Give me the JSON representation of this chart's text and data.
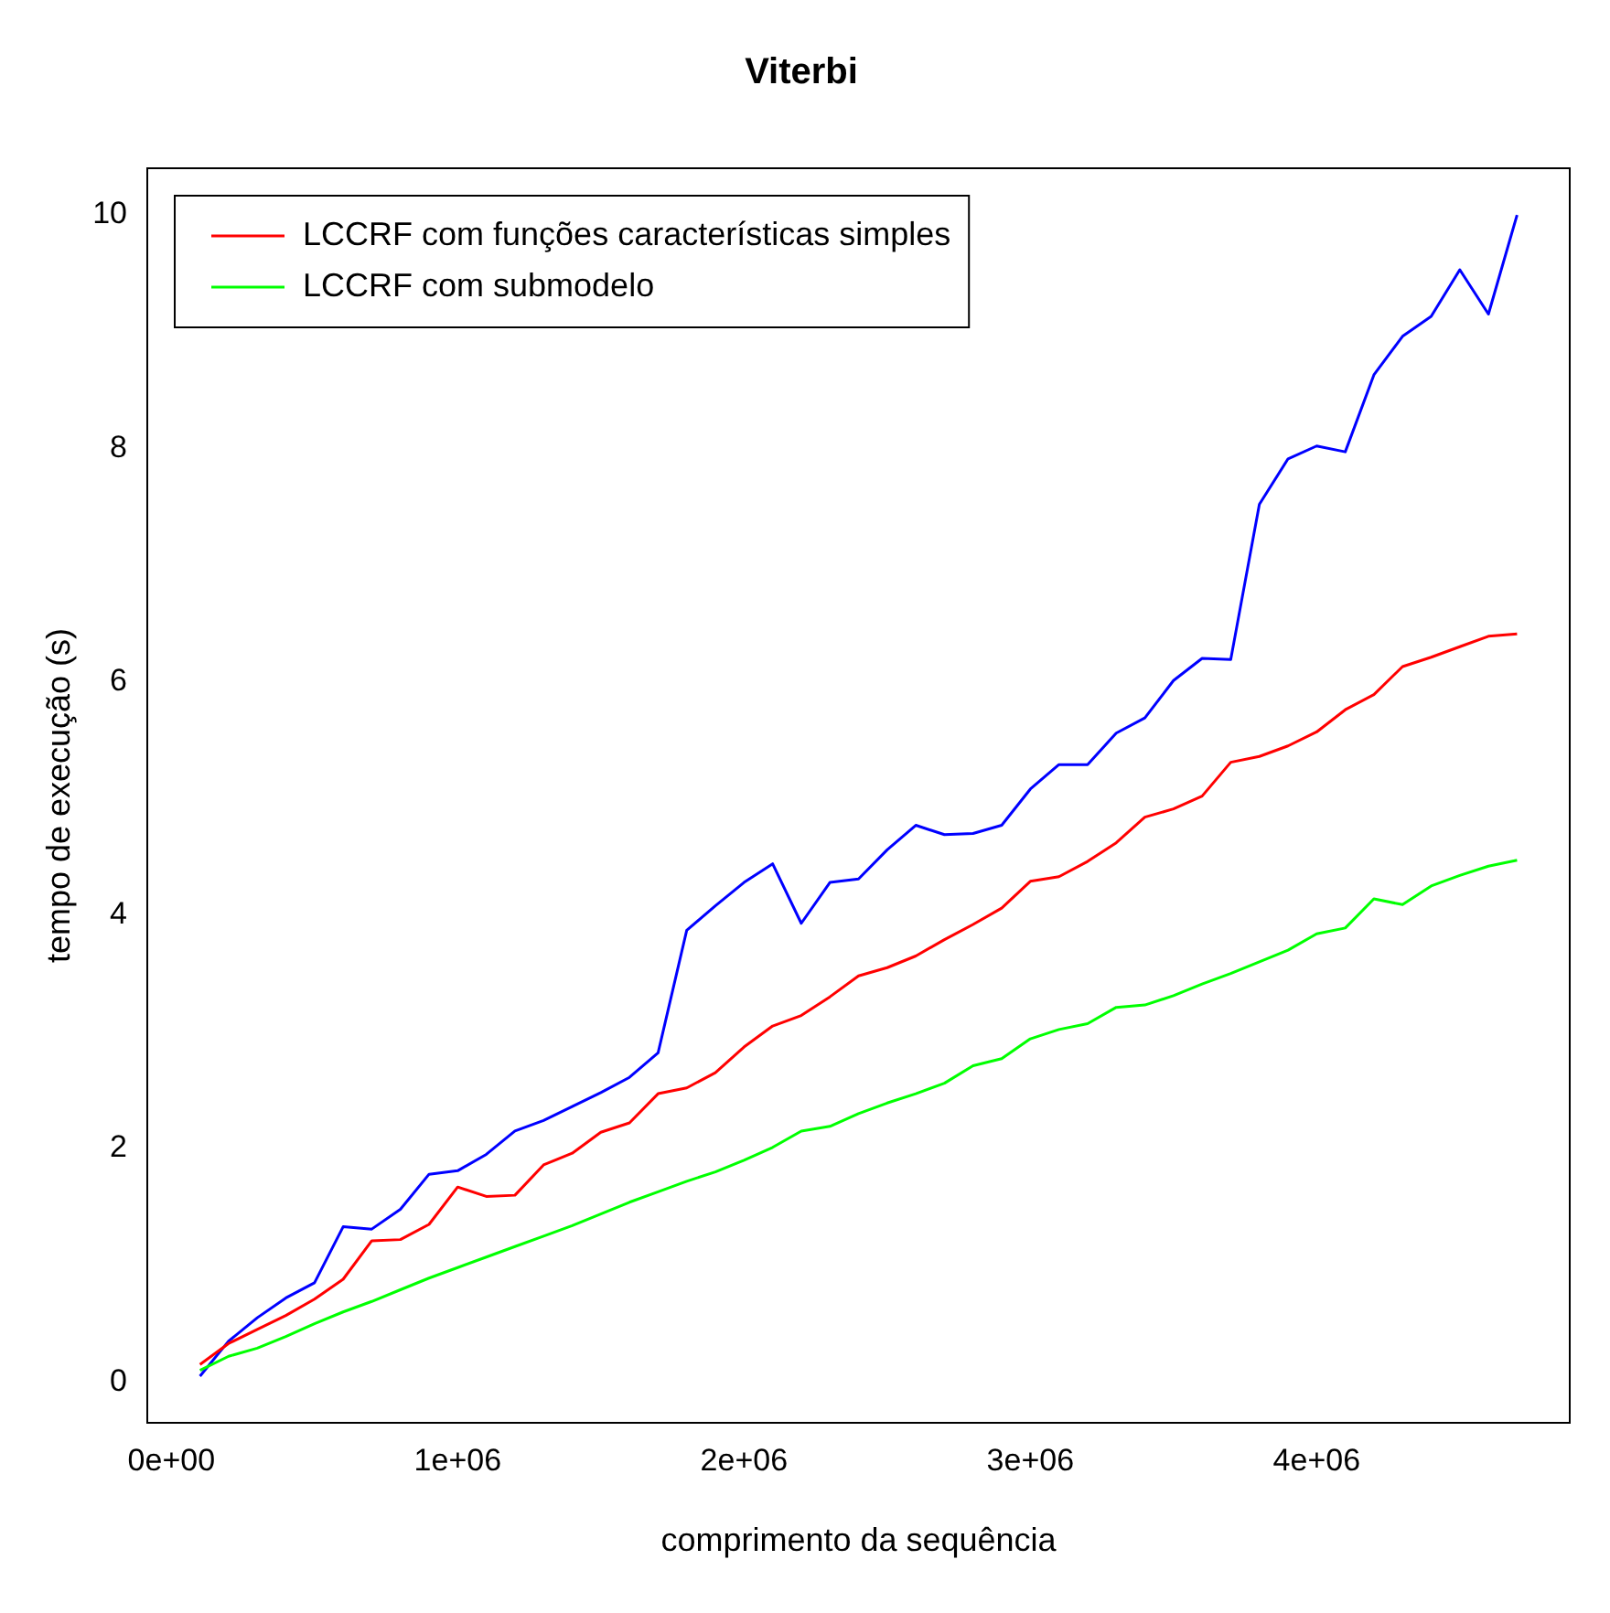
{
  "chart_data": {
    "type": "line",
    "title": "Viterbi",
    "xlabel": "comprimento da sequência",
    "ylabel": "tempo de execução (s)",
    "x": [
      100000,
      200000,
      300000,
      400000,
      500000,
      600000,
      700000,
      800000,
      900000,
      1000000,
      1100000,
      1200000,
      1300000,
      1400000,
      1500000,
      1600000,
      1700000,
      1800000,
      1900000,
      2000000,
      2100000,
      2200000,
      2300000,
      2400000,
      2500000,
      2600000,
      2700000,
      2800000,
      2900000,
      3000000,
      3100000,
      3200000,
      3300000,
      3400000,
      3500000,
      3600000,
      3700000,
      3800000,
      3900000,
      4000000,
      4100000,
      4200000,
      4300000,
      4400000,
      4500000,
      4600000,
      4700000
    ],
    "series": [
      {
        "name": "LCCRF com funções características simples",
        "color": "#ff0000",
        "values": [
          0.15,
          0.33,
          0.45,
          0.57,
          0.71,
          0.88,
          1.21,
          1.22,
          1.35,
          1.67,
          1.59,
          1.6,
          1.86,
          1.96,
          2.14,
          2.22,
          2.47,
          2.52,
          2.65,
          2.87,
          3.05,
          3.14,
          3.3,
          3.48,
          3.55,
          3.65,
          3.79,
          3.92,
          4.06,
          4.29,
          4.33,
          4.46,
          4.62,
          4.84,
          4.91,
          5.02,
          5.31,
          5.36,
          5.45,
          5.57,
          5.76,
          5.89,
          6.13,
          6.21,
          6.3,
          6.39,
          6.41
        ]
      },
      {
        "name": "LCCRF com submodelo",
        "color": "#00ff00",
        "values": [
          0.1,
          0.22,
          0.29,
          0.39,
          0.5,
          0.6,
          0.69,
          0.79,
          0.89,
          0.98,
          1.07,
          1.16,
          1.25,
          1.34,
          1.44,
          1.54,
          1.63,
          1.72,
          1.8,
          1.9,
          2.01,
          2.15,
          2.19,
          2.3,
          2.39,
          2.47,
          2.56,
          2.71,
          2.77,
          2.94,
          3.02,
          3.07,
          3.21,
          3.23,
          3.31,
          3.41,
          3.5,
          3.6,
          3.7,
          3.84,
          3.89,
          4.14,
          4.09,
          4.25,
          4.34,
          4.42,
          4.47
        ]
      },
      {
        "color": "#0000ff",
        "values": [
          0.05,
          0.35,
          0.55,
          0.72,
          0.85,
          1.33,
          1.31,
          1.48,
          1.78,
          1.81,
          1.95,
          2.15,
          2.24,
          2.36,
          2.48,
          2.61,
          2.82,
          3.87,
          4.08,
          4.28,
          4.44,
          3.93,
          4.28,
          4.31,
          4.56,
          4.77,
          4.69,
          4.7,
          4.77,
          5.08,
          5.29,
          5.29,
          5.56,
          5.69,
          6.01,
          6.2,
          6.19,
          7.52,
          7.91,
          8.02,
          7.97,
          8.63,
          8.96,
          9.13,
          9.53,
          9.15,
          10.0
        ]
      }
    ],
    "xlim": [
      -84000,
      4884000
    ],
    "xticks": [
      {
        "value": 0,
        "label": "0e+00"
      },
      {
        "value": 1000000,
        "label": "1e+06"
      },
      {
        "value": 2000000,
        "label": "2e+06"
      },
      {
        "value": 3000000,
        "label": "3e+06"
      },
      {
        "value": 4000000,
        "label": "4e+06"
      }
    ],
    "ylim": [
      -0.35,
      10.4
    ],
    "yticks": [
      0,
      2,
      4,
      6,
      8,
      10
    ],
    "grid": false,
    "legend": "top left",
    "marker": "none",
    "line_style": "solid"
  }
}
